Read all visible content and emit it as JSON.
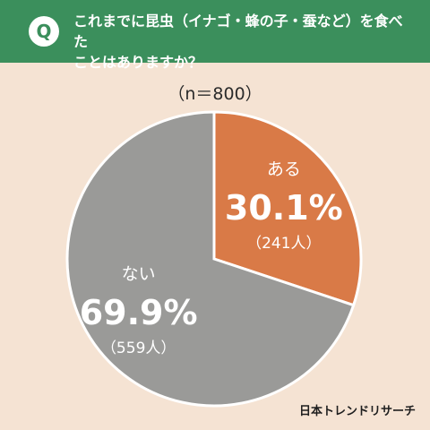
{
  "header": {
    "badge": "Q",
    "question_line1": "これまでに昆虫（イナゴ・蜂の子・蚕など）を食べた",
    "question_line2": "ことはありますか？"
  },
  "sample_size": "（n＝800）",
  "credit": "日本トレンドリサーチ",
  "colors": {
    "header": "#3b8f5c",
    "background": "#f5e3d3",
    "yes": "#d97a47",
    "no": "#9a9a98"
  },
  "chart_data": {
    "type": "pie",
    "title": "",
    "slices": [
      {
        "label": "ある",
        "percent": "30.1%",
        "count": "（241人）",
        "value": 30.1,
        "color": "#d97a47"
      },
      {
        "label": "ない",
        "percent": "69.9%",
        "count": "（559人）",
        "value": 69.9,
        "color": "#9a9a98"
      }
    ]
  }
}
